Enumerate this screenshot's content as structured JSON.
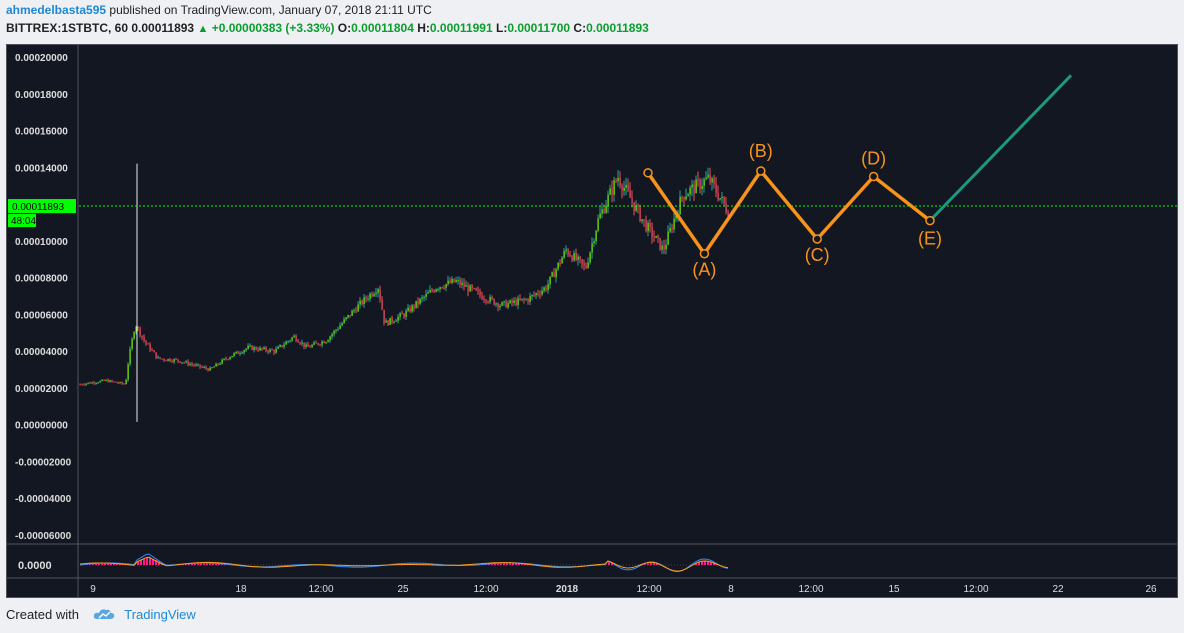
{
  "header": {
    "user": "ahmedelbasta595",
    "published_text": "published on TradingView.com, January 07, 2018 21:11 UTC",
    "symbol": "BITTREX:1STBTC, 60",
    "last": "0.00011893",
    "change": "+0.00000383 (+3.33%)",
    "open_label": "O:",
    "open": "0.00011804",
    "high_label": "H:",
    "high": "0.00011991",
    "low_label": "L:",
    "low": "0.00011700",
    "close_label": "C:",
    "close": "0.00011893"
  },
  "footer": {
    "created_with": "Created with",
    "brand": "TradingView",
    "logo_icon": "tradingview-cloud-icon"
  },
  "colors": {
    "background": "#131722",
    "wave": "#f7931a",
    "projection": "#1b9a7f",
    "price_line": "#00ff00",
    "up": "#26a69a",
    "down": "#ef5350"
  },
  "chart_data": {
    "type": "candlestick",
    "price_axis": {
      "ticks": [
        "0.00020000",
        "0.00018000",
        "0.00016000",
        "0.00014000",
        "0.00012000",
        "0.00010000",
        "0.00008000",
        "0.00006000",
        "0.00004000",
        "0.00002000",
        "0.00000000",
        "-0.00002000",
        "-0.00004000",
        "-0.00006000"
      ],
      "range": [
        -6.6e-05,
        0.000204
      ]
    },
    "time_axis": {
      "ticks": [
        "9",
        "18",
        "12:00",
        "25",
        "12:00",
        "2018",
        "12:00",
        "8",
        "12:00",
        "15",
        "12:00",
        "22",
        "26"
      ],
      "bold": [
        "2018"
      ]
    },
    "price_label": "0.00011893",
    "countdown": "48:04",
    "last_price": 0.00011893,
    "indicator": {
      "label": "0.0000"
    },
    "price_trend": [
      [
        0,
        2.2e-05
      ],
      [
        0.04,
        2.4e-05
      ],
      [
        0.07,
        2.2e-05
      ],
      [
        0.075,
        3.6e-05
      ],
      [
        0.085,
        5.5e-05
      ],
      [
        0.1,
        4.5e-05
      ],
      [
        0.12,
        3.6e-05
      ],
      [
        0.15,
        3.5e-05
      ],
      [
        0.2,
        3e-05
      ],
      [
        0.23,
        3.7e-05
      ],
      [
        0.26,
        4.2e-05
      ],
      [
        0.3,
        4e-05
      ],
      [
        0.33,
        4.8e-05
      ],
      [
        0.35,
        4.2e-05
      ],
      [
        0.38,
        4.6e-05
      ],
      [
        0.43,
        6.5e-05
      ],
      [
        0.46,
        7.5e-05
      ],
      [
        0.47,
        5.5e-05
      ],
      [
        0.5,
        6e-05
      ],
      [
        0.55,
        7.5e-05
      ],
      [
        0.58,
        7.8e-05
      ],
      [
        0.62,
        7e-05
      ],
      [
        0.65,
        6.5e-05
      ],
      [
        0.69,
        6.8e-05
      ],
      [
        0.72,
        7.5e-05
      ],
      [
        0.75,
        9.5e-05
      ],
      [
        0.78,
        8.5e-05
      ],
      [
        0.8,
        0.000112
      ],
      [
        0.83,
        0.000135
      ],
      [
        0.87,
        0.00011
      ],
      [
        0.9,
        9.5e-05
      ],
      [
        0.93,
        0.000125
      ],
      [
        0.97,
        0.000134
      ],
      [
        1,
        0.000116
      ]
    ],
    "waves": [
      {
        "label": "",
        "time": 0,
        "price": 0.000137
      },
      {
        "label": "(A)",
        "time": 1,
        "price": 9.3e-05
      },
      {
        "label": "(B)",
        "time": 2,
        "price": 0.000138
      },
      {
        "label": "(C)",
        "time": 3,
        "price": 0.000101
      },
      {
        "label": "(D)",
        "time": 4,
        "price": 0.000135
      },
      {
        "label": "(E)",
        "time": 5,
        "price": 0.000111
      },
      {
        "label": "",
        "time": 7.5,
        "price": 0.00019
      }
    ]
  }
}
